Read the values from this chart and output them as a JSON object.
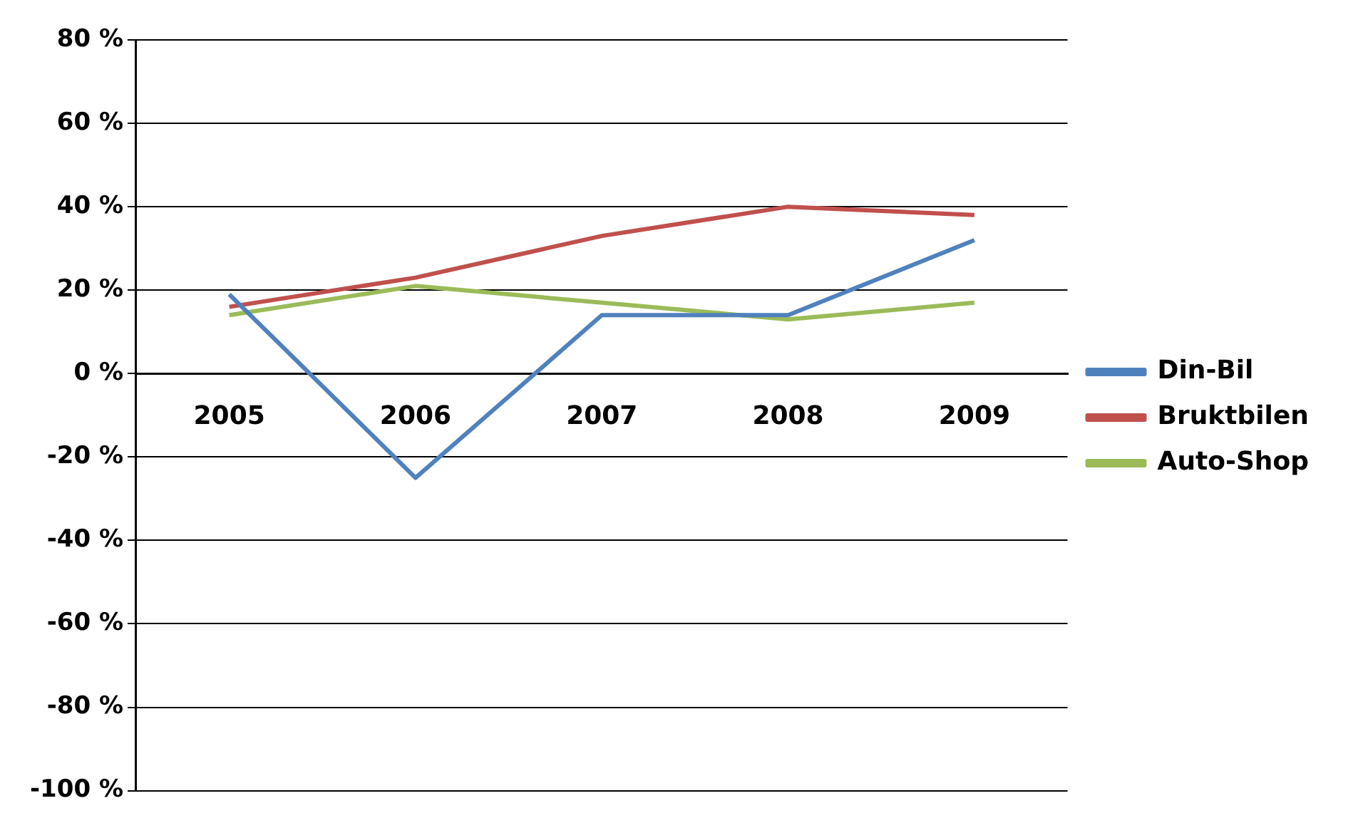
{
  "chart_data": {
    "type": "line",
    "categories": [
      "2005",
      "2006",
      "2007",
      "2008",
      "2009"
    ],
    "series": [
      {
        "name": "Din-Bil",
        "color": "#4f81bd",
        "values": [
          19,
          -25,
          14,
          14,
          32
        ]
      },
      {
        "name": "Bruktbilen",
        "color": "#c0504d",
        "values": [
          16,
          23,
          33,
          40,
          38
        ]
      },
      {
        "name": "Auto-Shop",
        "color": "#9bbb59",
        "values": [
          14,
          21,
          17,
          13,
          17
        ]
      }
    ],
    "ylim": [
      -100,
      80
    ],
    "yticks": [
      {
        "value": -100,
        "label": "-100 %"
      },
      {
        "value": -80,
        "label": "-80 %"
      },
      {
        "value": -60,
        "label": "-60 %"
      },
      {
        "value": -40,
        "label": "-40 %"
      },
      {
        "value": -20,
        "label": "-20 %"
      },
      {
        "value": 0,
        "label": "0 %"
      },
      {
        "value": 20,
        "label": "20 %"
      },
      {
        "value": 40,
        "label": "40 %"
      },
      {
        "value": 60,
        "label": "60 %"
      },
      {
        "value": 80,
        "label": "80 %"
      }
    ],
    "grid": "y",
    "legend": "right",
    "marker": "none",
    "line_style": "solid"
  }
}
